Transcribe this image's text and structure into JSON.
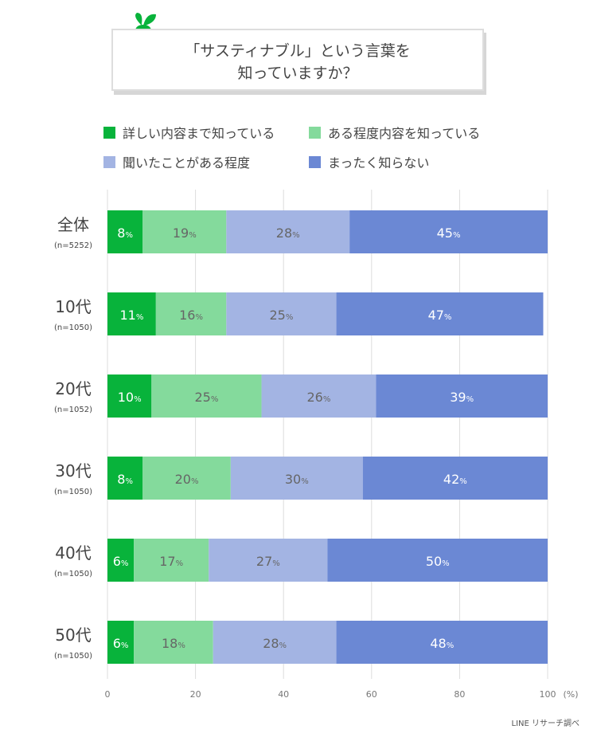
{
  "title": {
    "line1": "「サスティナブル」という言葉を",
    "line2": "知っていますか？"
  },
  "colors": {
    "detail": "#08b33b",
    "some": "#84da9c",
    "heard": "#a3b4e3",
    "none": "#6b88d4"
  },
  "footer": "LINE リサーチ調べ",
  "chart_data": {
    "type": "bar",
    "orientation": "horizontal-stacked",
    "categories": [
      "全体",
      "10代",
      "20代",
      "30代",
      "40代",
      "50代"
    ],
    "category_sublabels": [
      "(n=5252)",
      "(n=1050)",
      "(n=1052)",
      "(n=1050)",
      "(n=1050)",
      "(n=1050)"
    ],
    "series": [
      {
        "name": "詳しい内容まで知っている",
        "values": [
          8,
          11,
          10,
          8,
          6,
          6
        ]
      },
      {
        "name": "ある程度内容を知っている",
        "values": [
          19,
          16,
          25,
          20,
          17,
          18
        ]
      },
      {
        "name": "聞いたことがある程度",
        "values": [
          28,
          25,
          26,
          30,
          27,
          28
        ]
      },
      {
        "name": "まったく知らない",
        "values": [
          45,
          47,
          39,
          42,
          50,
          48
        ]
      }
    ],
    "value_suffix": "%",
    "xlim": [
      0,
      100
    ],
    "xticks": [
      0,
      20,
      40,
      60,
      80,
      100
    ],
    "xlabel": "(%)",
    "grid": true,
    "legend": "top"
  }
}
